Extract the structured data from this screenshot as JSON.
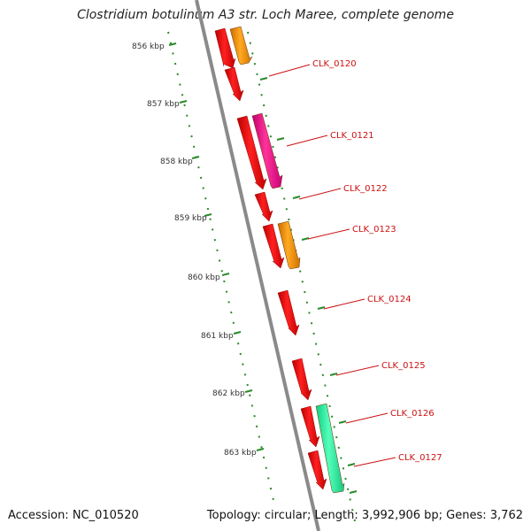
{
  "title": "Clostridium botulinum A3 str. Loch Maree, complete genome",
  "footer": {
    "accession": "Accession: NC_010520",
    "summary": "Topology: circular; Length: 3,992,906 bp; Genes: 3,762"
  },
  "kbp_labels": [
    "856 kbp",
    "857 kbp",
    "858 kbp",
    "859 kbp",
    "860 kbp",
    "861 kbp",
    "862 kbp",
    "863 kbp"
  ],
  "genes": [
    "CLK_0120",
    "CLK_0121",
    "CLK_0122",
    "CLK_0123",
    "CLK_0124",
    "CLK_0125",
    "CLK_0126",
    "CLK_0127"
  ],
  "colors": {
    "backbone": "#888888",
    "ticks": "#2a8a2a",
    "red": "#ff0000",
    "orange": "#ff9900",
    "magenta": "#ff1493",
    "green": "#33ffaa",
    "label": "#cc1111"
  }
}
